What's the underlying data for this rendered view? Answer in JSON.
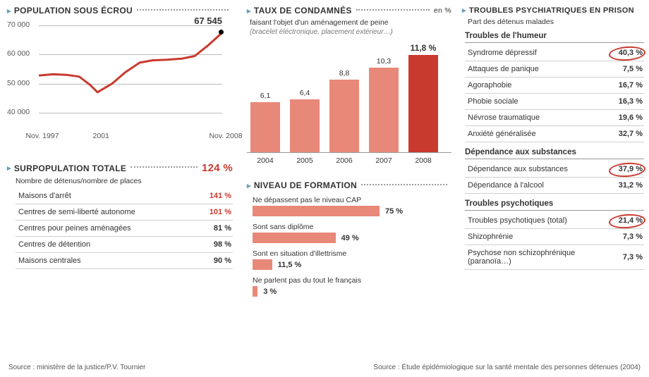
{
  "colors": {
    "red": "#c93a2e",
    "salmon": "#e88878",
    "blue_arrow": "#6a9fb5",
    "grid": "#bbbbbb",
    "text": "#333333"
  },
  "population": {
    "title": "POPULATION SOUS ÉCROU",
    "yticks": [
      40000,
      50000,
      60000,
      70000
    ],
    "ytick_labels": [
      "40 000",
      "50 000",
      "60 000",
      "70 000"
    ],
    "xticks": [
      "Nov. 1997",
      "2001",
      "Nov. 2008"
    ],
    "xtick_pos": [
      0,
      0.32,
      1.0
    ],
    "annotation": "67 545",
    "line_color": "#c93a2e",
    "line_width": 3,
    "data": [
      {
        "x": 0.0,
        "y": 52800
      },
      {
        "x": 0.08,
        "y": 53200
      },
      {
        "x": 0.15,
        "y": 53000
      },
      {
        "x": 0.22,
        "y": 52400
      },
      {
        "x": 0.28,
        "y": 49500
      },
      {
        "x": 0.32,
        "y": 47000
      },
      {
        "x": 0.4,
        "y": 50000
      },
      {
        "x": 0.47,
        "y": 53800
      },
      {
        "x": 0.55,
        "y": 57200
      },
      {
        "x": 0.62,
        "y": 58000
      },
      {
        "x": 0.7,
        "y": 58200
      },
      {
        "x": 0.78,
        "y": 58600
      },
      {
        "x": 0.85,
        "y": 59500
      },
      {
        "x": 0.92,
        "y": 63000
      },
      {
        "x": 1.0,
        "y": 67545
      }
    ],
    "ylim": [
      38000,
      72000
    ]
  },
  "surpopulation": {
    "title": "SURPOPULATION TOTALE",
    "headline_value": "124 %",
    "subtitle": "Nombre de détenus/nombre de places",
    "rows": [
      {
        "label": "Maisons d'arrêt",
        "value": "141 %",
        "red": true
      },
      {
        "label": "Centres de semi-liberté autonome",
        "value": "101 %",
        "red": true
      },
      {
        "label": "Centres pour peines aménagées",
        "value": "81 %",
        "red": false
      },
      {
        "label": "Centres de détention",
        "value": "98 %",
        "red": false
      },
      {
        "label": "Maisons centrales",
        "value": "90 %",
        "red": false
      }
    ]
  },
  "taux": {
    "title": "TAUX DE CONDAMNÉS",
    "unit": "en %",
    "subtitle": "faisant l'objet d'un aménagement de peine",
    "subtitle2": "(bracelet éléctronique, placement extérieur…)",
    "bars": [
      {
        "x": "2004",
        "v": 6.1,
        "label": "6,1",
        "color": "#e88878",
        "bold": false
      },
      {
        "x": "2005",
        "v": 6.4,
        "label": "6,4",
        "color": "#e88878",
        "bold": false
      },
      {
        "x": "2006",
        "v": 8.8,
        "label": "8,8",
        "color": "#e88878",
        "bold": false
      },
      {
        "x": "2007",
        "v": 10.3,
        "label": "10,3",
        "color": "#e88878",
        "bold": false
      },
      {
        "x": "2008",
        "v": 11.8,
        "label": "11,8 %",
        "color": "#c93a2e",
        "bold": true
      }
    ],
    "ymax": 12
  },
  "formation": {
    "title": "NIVEAU DE FORMATION",
    "items": [
      {
        "label": "Ne dépassent pas le niveau CAP",
        "v": 75,
        "disp": "75 %"
      },
      {
        "label": "Sont sans diplôme",
        "v": 49,
        "disp": "49 %"
      },
      {
        "label": "Sont en situation d'illettrisme",
        "v": 11.5,
        "disp": "11,5 %"
      },
      {
        "label": "Ne parlent pas du tout le français",
        "v": 3,
        "disp": "3 %"
      }
    ],
    "xmax": 100,
    "bar_color": "#e88878"
  },
  "troubles": {
    "title": "TROUBLES PSYCHIATRIQUES EN PRISON",
    "subtitle": "Part des détenus malades",
    "groups": [
      {
        "name": "Troubles de l'humeur",
        "rows": [
          {
            "label": "Syndrome dépressif",
            "value": "40,3 %",
            "circled": true
          },
          {
            "label": "Attaques de panique",
            "value": "7,5 %",
            "circled": false
          },
          {
            "label": "Agoraphobie",
            "value": "16,7 %",
            "circled": false
          },
          {
            "label": "Phobie sociale",
            "value": "16,3 %",
            "circled": false
          },
          {
            "label": "Névrose traumatique",
            "value": "19,6 %",
            "circled": false
          },
          {
            "label": "Anxiété généralisée",
            "value": "32,7 %",
            "circled": false
          }
        ]
      },
      {
        "name": "Dépendance aux substances",
        "rows": [
          {
            "label": "Dépendance aux substances",
            "value": "37,9 %",
            "circled": true
          },
          {
            "label": "Dépendance à l'alcool",
            "value": "31,2 %",
            "circled": false
          }
        ]
      },
      {
        "name": "Troubles psychotiques",
        "rows": [
          {
            "label": "Troubles psychotiques (total)",
            "value": "21,4 %",
            "circled": true
          },
          {
            "label": "Shizophrénie",
            "value": "7,3 %",
            "circled": false
          },
          {
            "label": "Psychose non schizophrénique (paranoïa…)",
            "value": "7,3 %",
            "circled": false
          }
        ]
      }
    ]
  },
  "sources": {
    "left": "Source : ministère de la justice/P.V. Tournier",
    "right": "Source : Étude épidémiologique sur la santé mentale des personnes détenues (2004)"
  }
}
